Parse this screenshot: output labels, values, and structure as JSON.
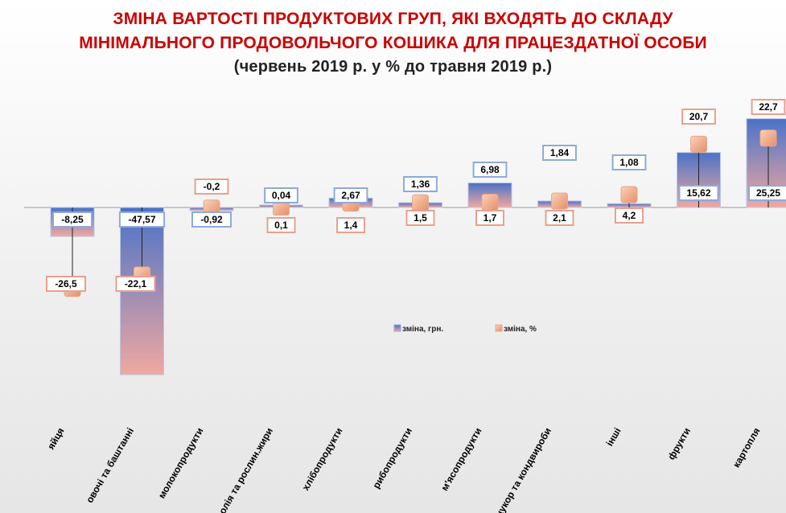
{
  "title": {
    "line1": "ЗМІНА ВАРТОСТІ ПРОДУКТОВИХ ГРУП, ЯКІ ВХОДЯТЬ ДО СКЛАДУ",
    "line2": "МІНІМАЛЬНОГО  ПРОДОВОЛЬЧОГО  КОШИКА ДЛЯ ПРАЦЕЗДАТНОЇ ОСОБИ",
    "line3": "(червень 2019 р. у % до травня 2019 р.)"
  },
  "colors": {
    "title": "#cc0000",
    "series_grn_top": "#4a72c8",
    "series_grn_bottom": "#f0a8a0",
    "series_pct": "#f5b08c",
    "label_border_grn": "#8eaad8",
    "label_border_pct": "#e8a090"
  },
  "chart_data": {
    "type": "bar",
    "categories": [
      "яйця",
      "овочі та баштанні",
      "молокопродукти",
      "олія та рослин.жири",
      "хлібопродукти",
      "рибопродукти",
      "м'ясопродукти",
      "цукор та кондвироби",
      "інші",
      "фрукти",
      "картопля"
    ],
    "series": [
      {
        "name": "зміна, грн.",
        "values": [
          -8.25,
          -47.57,
          -0.92,
          0.04,
          2.67,
          1.36,
          6.98,
          1.84,
          1.08,
          15.62,
          25.25
        ],
        "labels": [
          "-8,25",
          "-47,57",
          "-0,92",
          "0,04",
          "2,67",
          "1,36",
          "6,98",
          "1,84",
          "1,08",
          "15,62",
          "25,25"
        ]
      },
      {
        "name": "зміна, %",
        "values": [
          -26.5,
          -22.1,
          -0.2,
          0.1,
          1.4,
          1.5,
          1.7,
          2.1,
          4.2,
          20.7,
          22.7
        ],
        "labels": [
          "-26,5",
          "-22,1",
          "-0,2",
          "0,1",
          "1,4",
          "1,5",
          "1,7",
          "2,1",
          "4,2",
          "20,7",
          "22,7"
        ]
      }
    ],
    "legend": [
      "зміна, грн.",
      "зміна, %"
    ],
    "legend_position": "center-right",
    "grid": false
  }
}
